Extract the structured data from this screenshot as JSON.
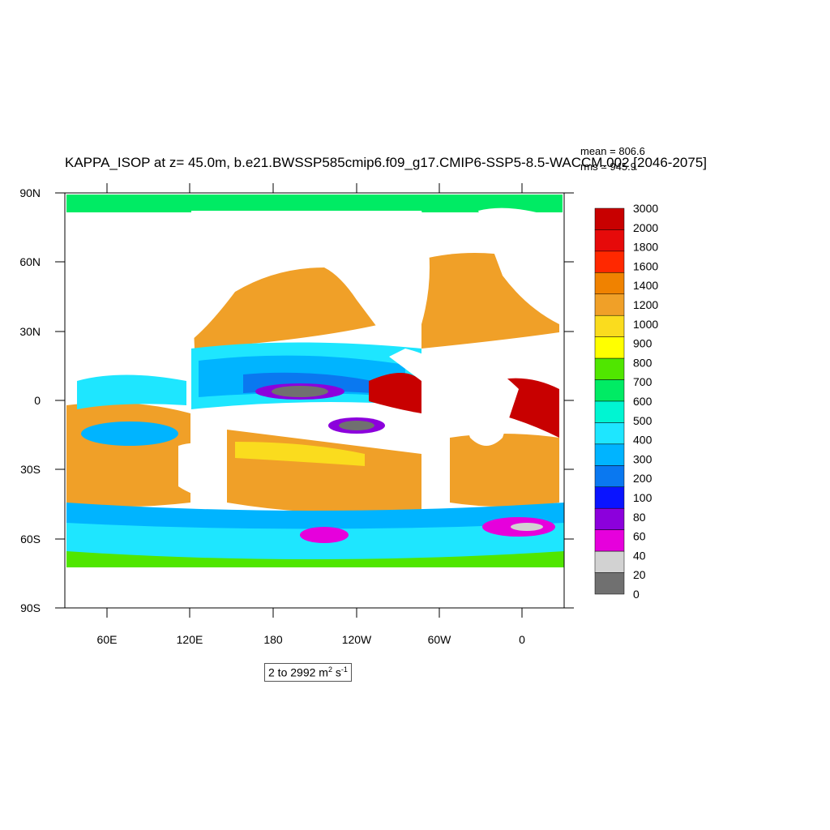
{
  "title": "KAPPA_ISOP at z=  45.0m, b.e21.BWSSP585cmip6.f09_g17.CMIP6-SSP5-8.5-WACCM.002 [2046-2075]",
  "stats": {
    "mean": "mean = 806.6",
    "rms": "rms = 945.9"
  },
  "range_label": {
    "prefix": "2 to 2992 m",
    "exp1": "2",
    "mid": " s",
    "exp2": "-1"
  },
  "axes": {
    "y_ticks": [
      "90N",
      "60N",
      "30N",
      "0",
      "30S",
      "60S",
      "90S"
    ],
    "x_ticks": [
      "60E",
      "120E",
      "180",
      "120W",
      "60W",
      "0"
    ]
  },
  "colorbar": {
    "labels": [
      "3000",
      "2000",
      "1800",
      "1600",
      "1400",
      "1200",
      "1000",
      "900",
      "800",
      "700",
      "600",
      "500",
      "400",
      "300",
      "200",
      "100",
      "80",
      "60",
      "40",
      "20",
      "0"
    ],
    "colors": [
      "#c80000",
      "#e60a0a",
      "#ff2800",
      "#f08200",
      "#f0a028",
      "#fadc1e",
      "#ffff00",
      "#50e600",
      "#00eb64",
      "#00f5d2",
      "#1ee6ff",
      "#00b4ff",
      "#0a78f0",
      "#0a14ff",
      "#8c00dc",
      "#e600dc",
      "#d2d2d2",
      "#707070"
    ]
  },
  "chart_data": {
    "type": "heatmap",
    "title": "KAPPA_ISOP at z=  45.0m, b.e21.BWSSP585cmip6.f09_g17.CMIP6-SSP5-8.5-WACCM.002 [2046-2075]",
    "units": "m2 s-1",
    "data_range": [
      2,
      2992
    ],
    "mean": 806.6,
    "rms": 945.9,
    "lat_range": [
      -90,
      90
    ],
    "lon_ticks": [
      "60E",
      "120E",
      "180",
      "120W",
      "60W",
      "0"
    ],
    "contour_levels": [
      0,
      20,
      40,
      60,
      80,
      100,
      200,
      300,
      400,
      500,
      600,
      700,
      800,
      900,
      1000,
      1200,
      1400,
      1600,
      1800,
      2000,
      3000
    ]
  }
}
